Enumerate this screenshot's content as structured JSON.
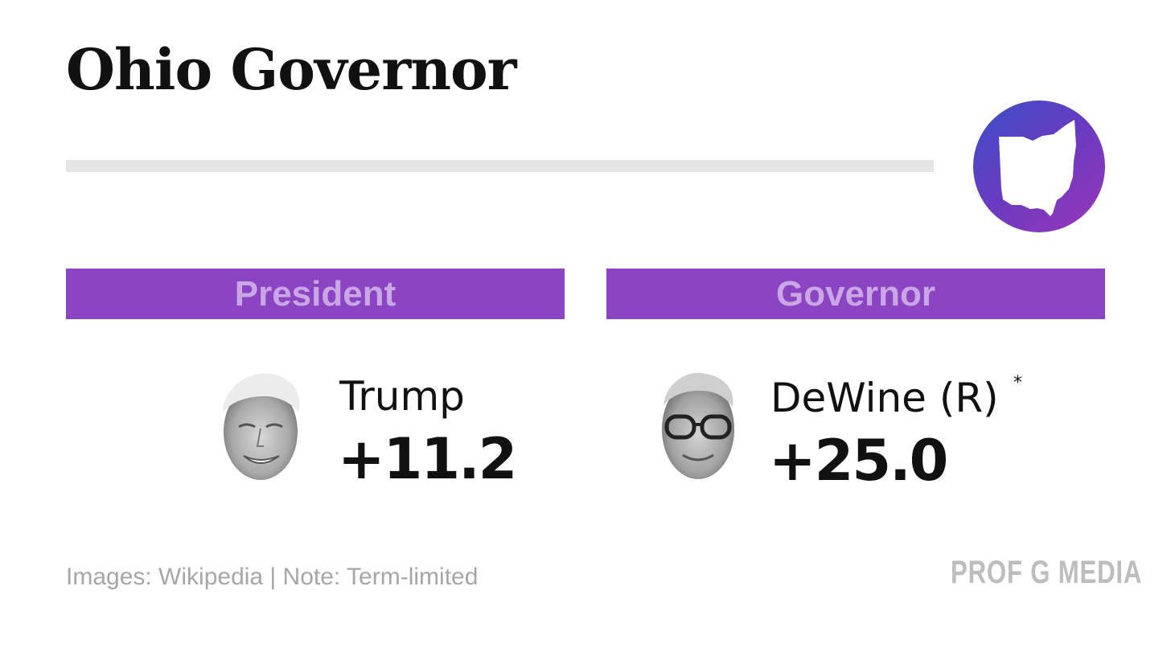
{
  "title": "Ohio Governor",
  "state_icon": {
    "name": "ohio-state-icon"
  },
  "colors": {
    "header_bar": "#8b44c2",
    "header_text": "#c9a6e6",
    "badge_gradient": [
      "#3a4fc8",
      "#9a35b8"
    ],
    "rule": "#e5e5e5",
    "footnote": "#a6a6a6"
  },
  "sections": {
    "president": {
      "header": "President",
      "candidate": "Trump",
      "margin": "+11.2"
    },
    "governor": {
      "header": "Governor",
      "candidate": "DeWine (R)",
      "asterisk": "*",
      "margin": "+25.0"
    }
  },
  "footnote": "Images: Wikipedia | Note: Term-limited",
  "brand": "PROF G MEDIA"
}
